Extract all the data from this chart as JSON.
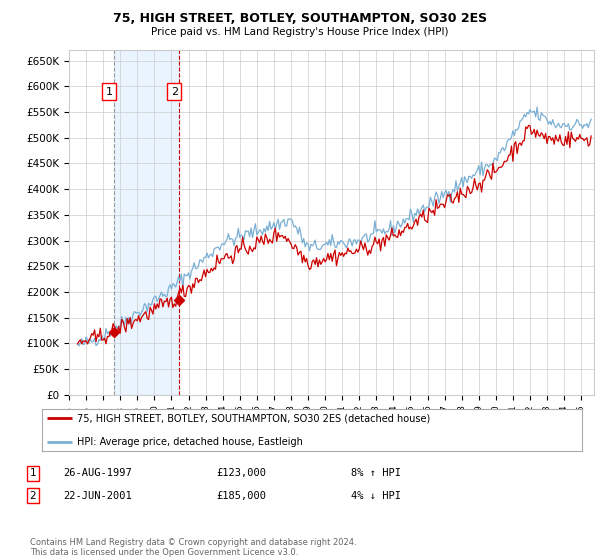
{
  "title1": "75, HIGH STREET, BOTLEY, SOUTHAMPTON, SO30 2ES",
  "title2": "Price paid vs. HM Land Registry's House Price Index (HPI)",
  "xlabel": "",
  "ylabel": "",
  "ylim": [
    0,
    670000
  ],
  "yticks": [
    0,
    50000,
    100000,
    150000,
    200000,
    250000,
    300000,
    350000,
    400000,
    450000,
    500000,
    550000,
    600000,
    650000
  ],
  "sale1_date_num": 1997.65,
  "sale1_price": 123000,
  "sale2_date_num": 2001.47,
  "sale2_price": 185000,
  "line1_color": "#cc0000",
  "line2_color": "#7aafd4",
  "marker_color": "#cc0000",
  "vline1_color": "#999999",
  "vline2_color": "#cc0000",
  "shade_color": "#ddeeff",
  "shade_alpha": 0.6,
  "legend1_label": "75, HIGH STREET, BOTLEY, SOUTHAMPTON, SO30 2ES (detached house)",
  "legend2_label": "HPI: Average price, detached house, Eastleigh",
  "table_row1": [
    "1",
    "26-AUG-1997",
    "£123,000",
    "8% ↑ HPI"
  ],
  "table_row2": [
    "2",
    "22-JUN-2001",
    "£185,000",
    "4% ↓ HPI"
  ],
  "footer": "Contains HM Land Registry data © Crown copyright and database right 2024.\nThis data is licensed under the Open Government Licence v3.0.",
  "bg_color": "#ffffff",
  "grid_color": "#cccccc",
  "xstart": 1995.25,
  "xend": 2025.75
}
